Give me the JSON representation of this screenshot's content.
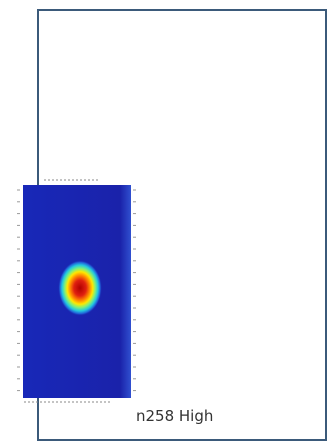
{
  "panel": {
    "label": "n258 High"
  },
  "heatmap": {
    "colors": {
      "low": "#1620a8",
      "mid": "#22c8e0",
      "high": "#c80a0a",
      "axis": "#777777",
      "border": "#3b5a7a"
    }
  }
}
